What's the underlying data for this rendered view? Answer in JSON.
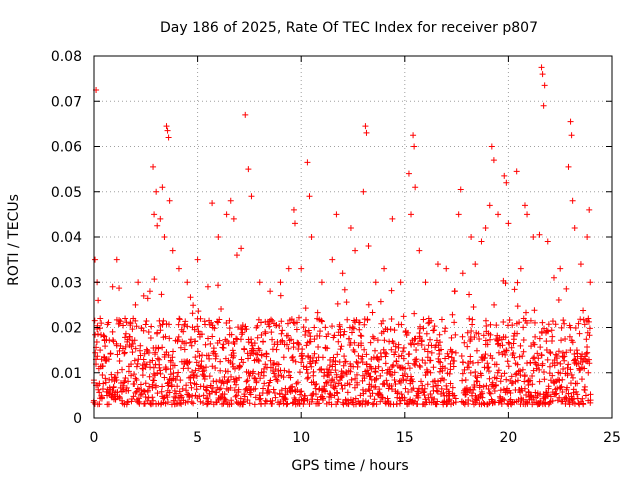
{
  "chart_data": {
    "type": "scatter",
    "title": "Day 186 of 2025, Rate Of TEC Index for receiver p807",
    "xlabel": "GPS time / hours",
    "ylabel": "ROTI / TECUs",
    "xlim": [
      0,
      25
    ],
    "ylim": [
      0,
      0.08
    ],
    "xticks": [
      0,
      5,
      10,
      15,
      20,
      25
    ],
    "xtick_labels": [
      "0",
      "5",
      "10",
      "15",
      "20",
      "25"
    ],
    "yticks": [
      0,
      0.01,
      0.02,
      0.03,
      0.04,
      0.05,
      0.06,
      0.07,
      0.08
    ],
    "ytick_labels": [
      "0",
      "0.01",
      "0.02",
      "0.03",
      "0.04",
      "0.05",
      "0.06",
      "0.07",
      "0.08"
    ],
    "grid": true,
    "marker": "+",
    "color": "#ff0000",
    "series": [
      {
        "name": "ROTI",
        "points": [
          [
            0.05,
            0.035
          ],
          [
            0.1,
            0.0725
          ],
          [
            0.15,
            0.03
          ],
          [
            0.2,
            0.026
          ],
          [
            0.3,
            0.022
          ],
          [
            0.5,
            0.018
          ],
          [
            0.9,
            0.029
          ],
          [
            1.1,
            0.035
          ],
          [
            1.5,
            0.022
          ],
          [
            2.0,
            0.025
          ],
          [
            2.4,
            0.027
          ],
          [
            2.7,
            0.028
          ],
          [
            2.85,
            0.0555
          ],
          [
            2.9,
            0.045
          ],
          [
            3.0,
            0.05
          ],
          [
            3.05,
            0.0425
          ],
          [
            3.2,
            0.044
          ],
          [
            3.3,
            0.051
          ],
          [
            3.4,
            0.04
          ],
          [
            3.5,
            0.0645
          ],
          [
            3.55,
            0.0635
          ],
          [
            3.6,
            0.062
          ],
          [
            3.65,
            0.048
          ],
          [
            3.8,
            0.037
          ],
          [
            4.1,
            0.033
          ],
          [
            4.5,
            0.03
          ],
          [
            5.0,
            0.035
          ],
          [
            5.5,
            0.029
          ],
          [
            5.7,
            0.0475
          ],
          [
            6.0,
            0.04
          ],
          [
            6.4,
            0.045
          ],
          [
            6.6,
            0.048
          ],
          [
            6.75,
            0.044
          ],
          [
            6.9,
            0.036
          ],
          [
            7.1,
            0.0375
          ],
          [
            7.3,
            0.067
          ],
          [
            7.45,
            0.055
          ],
          [
            7.6,
            0.049
          ],
          [
            8.0,
            0.03
          ],
          [
            8.5,
            0.028
          ],
          [
            9.0,
            0.03
          ],
          [
            9.4,
            0.033
          ],
          [
            9.65,
            0.046
          ],
          [
            9.7,
            0.043
          ],
          [
            10.0,
            0.033
          ],
          [
            10.3,
            0.0565
          ],
          [
            10.4,
            0.049
          ],
          [
            10.5,
            0.04
          ],
          [
            11.0,
            0.03
          ],
          [
            11.5,
            0.035
          ],
          [
            11.7,
            0.045
          ],
          [
            12.0,
            0.032
          ],
          [
            12.4,
            0.042
          ],
          [
            12.6,
            0.037
          ],
          [
            13.0,
            0.05
          ],
          [
            13.1,
            0.0645
          ],
          [
            13.15,
            0.063
          ],
          [
            13.25,
            0.038
          ],
          [
            13.6,
            0.03
          ],
          [
            14.0,
            0.033
          ],
          [
            14.4,
            0.044
          ],
          [
            14.8,
            0.03
          ],
          [
            15.2,
            0.054
          ],
          [
            15.3,
            0.045
          ],
          [
            15.4,
            0.0625
          ],
          [
            15.45,
            0.06
          ],
          [
            15.5,
            0.051
          ],
          [
            15.7,
            0.037
          ],
          [
            16.0,
            0.03
          ],
          [
            16.6,
            0.034
          ],
          [
            17.0,
            0.033
          ],
          [
            17.4,
            0.028
          ],
          [
            17.6,
            0.045
          ],
          [
            17.7,
            0.0505
          ],
          [
            17.8,
            0.032
          ],
          [
            18.2,
            0.04
          ],
          [
            18.4,
            0.034
          ],
          [
            18.7,
            0.039
          ],
          [
            18.9,
            0.042
          ],
          [
            19.1,
            0.047
          ],
          [
            19.2,
            0.06
          ],
          [
            19.3,
            0.057
          ],
          [
            19.5,
            0.045
          ],
          [
            19.8,
            0.0535
          ],
          [
            19.9,
            0.052
          ],
          [
            20.0,
            0.043
          ],
          [
            20.4,
            0.0545
          ],
          [
            20.6,
            0.033
          ],
          [
            20.8,
            0.047
          ],
          [
            20.9,
            0.045
          ],
          [
            21.2,
            0.04
          ],
          [
            21.5,
            0.0405
          ],
          [
            21.6,
            0.0775
          ],
          [
            21.65,
            0.076
          ],
          [
            21.7,
            0.069
          ],
          [
            21.75,
            0.0735
          ],
          [
            21.9,
            0.039
          ],
          [
            22.2,
            0.031
          ],
          [
            22.5,
            0.033
          ],
          [
            22.9,
            0.0555
          ],
          [
            23.0,
            0.0655
          ],
          [
            23.05,
            0.0625
          ],
          [
            23.1,
            0.048
          ],
          [
            23.2,
            0.042
          ],
          [
            23.5,
            0.034
          ],
          [
            23.8,
            0.04
          ],
          [
            23.9,
            0.046
          ],
          [
            23.95,
            0.03
          ]
        ],
        "baseline": {
          "x_range": [
            0,
            24
          ],
          "spacing_hours": 0.05,
          "typical_range": [
            0.003,
            0.022
          ],
          "gaps": [
            [
              17.5,
              17.75
            ]
          ]
        }
      }
    ]
  }
}
